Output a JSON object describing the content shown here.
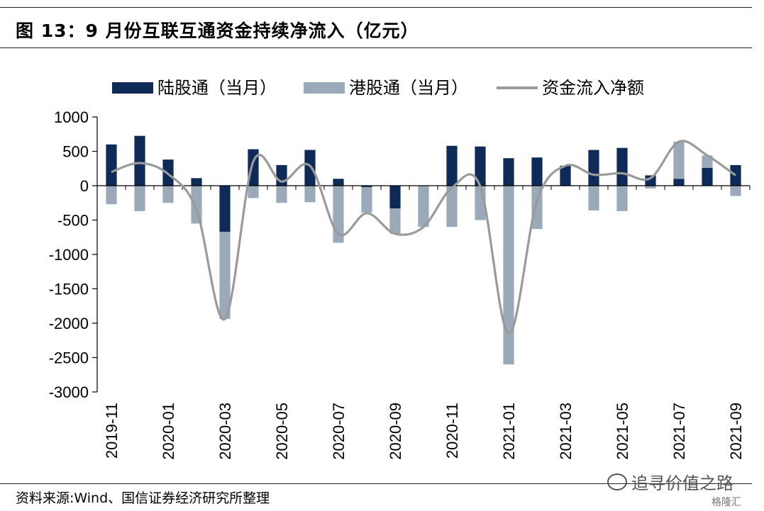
{
  "header": {
    "title": "图 13：9 月份互联互通资金持续净流入（亿元）"
  },
  "footer": {
    "source": "资料来源:Wind、国信证券经济研究所整理"
  },
  "watermark": {
    "text": "追寻价值之路",
    "brand": "格隆汇"
  },
  "chart_data": {
    "type": "bar",
    "title": "",
    "xlabel": "",
    "ylabel": "",
    "ylim": [
      -3000,
      1000
    ],
    "yticks": [
      1000,
      500,
      0,
      -500,
      -1000,
      -1500,
      -2000,
      -2500,
      -3000
    ],
    "ytick_labels": [
      "1000",
      "500",
      "0",
      "-500",
      "-1000",
      "-1500",
      "-2000",
      "-2500",
      "-3000"
    ],
    "categories": [
      "2019-11",
      "2019-12",
      "2020-01",
      "2020-02",
      "2020-03",
      "2020-04",
      "2020-05",
      "2020-06",
      "2020-07",
      "2020-08",
      "2020-09",
      "2020-10",
      "2020-11",
      "2020-12",
      "2021-01",
      "2021-02",
      "2021-03",
      "2021-04",
      "2021-05",
      "2021-06",
      "2021-07",
      "2021-08",
      "2021-09"
    ],
    "xtick_labels": [
      "2019-11",
      "",
      "2020-01",
      "",
      "2020-03",
      "",
      "2020-05",
      "",
      "2020-07",
      "",
      "2020-09",
      "",
      "2020-11",
      "",
      "2021-01",
      "",
      "2021-03",
      "",
      "2021-05",
      "",
      "2021-07",
      "",
      "2021-09"
    ],
    "series": [
      {
        "name": "陆股通（当月）",
        "type": "bar",
        "color": "#0e2a56",
        "values": [
          600,
          725,
          380,
          110,
          -670,
          530,
          300,
          520,
          100,
          -20,
          -330,
          0,
          580,
          570,
          400,
          410,
          290,
          520,
          550,
          150,
          100,
          260,
          300
        ]
      },
      {
        "name": "港股通（当月）",
        "type": "bar",
        "color": "#9aaab9",
        "values": [
          -270,
          -370,
          -250,
          -550,
          -1270,
          -180,
          -250,
          -240,
          -830,
          -370,
          -370,
          -600,
          -600,
          -500,
          -2600,
          -630,
          0,
          -360,
          -370,
          -40,
          540,
          180,
          -150
        ]
      },
      {
        "name": "资金流入净额",
        "type": "line",
        "color": "#9a9a9a",
        "values": [
          200,
          330,
          170,
          -350,
          -1940,
          350,
          60,
          290,
          -700,
          -400,
          -700,
          -600,
          -30,
          -10,
          -2150,
          -220,
          290,
          160,
          180,
          110,
          640,
          440,
          150
        ]
      }
    ],
    "legend_position": "top",
    "grid": false
  }
}
